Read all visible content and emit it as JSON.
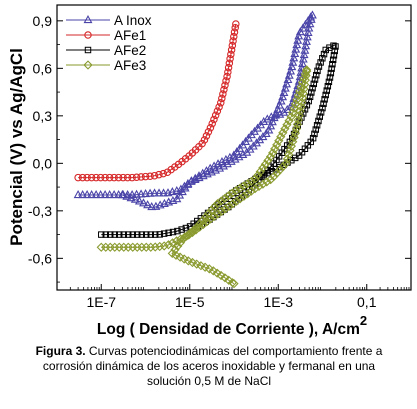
{
  "chart_data": {
    "type": "scatter",
    "title": "",
    "xlabel": "Log ( Densidad de Corriente ), A/cm",
    "xlabel_superscript": "2",
    "ylabel": "Potencial (V) vs Ag/AgCl",
    "x_scale": "log",
    "xlim": [
      1e-08,
      1
    ],
    "ylim": [
      -0.8,
      1.0
    ],
    "x_ticks": [
      1e-07,
      1e-05,
      0.001,
      0.1
    ],
    "x_tick_labels": [
      "1E-7",
      "1E-5",
      "1E-3",
      "0,1"
    ],
    "y_ticks": [
      -0.6,
      -0.3,
      0.0,
      0.3,
      0.6,
      0.9
    ],
    "y_tick_labels": [
      "-0,6",
      "-0,3",
      "0,0",
      "0,3",
      "0,6",
      "0,9"
    ],
    "grid": false,
    "legend_position": "top-left",
    "series": [
      {
        "name": "A Inox",
        "color": "#4a44a8",
        "marker": "triangle",
        "points": [
          [
            3e-08,
            -0.2
          ],
          [
            1e-07,
            -0.2
          ],
          [
            5e-07,
            -0.2
          ],
          [
            1.5e-06,
            -0.19
          ],
          [
            3e-06,
            -0.19
          ],
          [
            6e-06,
            -0.17
          ],
          [
            1e-05,
            -0.12
          ],
          [
            3e-05,
            -0.03
          ],
          [
            0.0001,
            0.05
          ],
          [
            0.00025,
            0.18
          ],
          [
            0.0005,
            0.27
          ],
          [
            0.0008,
            0.3
          ],
          [
            0.0012,
            0.31
          ],
          [
            0.002,
            0.36
          ],
          [
            0.003,
            0.52
          ],
          [
            0.005,
            0.86
          ],
          [
            0.006,
            0.94
          ],
          [
            0.003,
            0.82
          ],
          [
            0.002,
            0.6
          ],
          [
            0.0012,
            0.4
          ],
          [
            0.0006,
            0.2
          ],
          [
            0.0002,
            0.07
          ],
          [
            5e-05,
            -0.03
          ],
          [
            1e-05,
            -0.12
          ],
          [
            5e-06,
            -0.23
          ],
          [
            1.5e-06,
            -0.28
          ],
          [
            6e-07,
            -0.23
          ],
          [
            3e-07,
            -0.2
          ]
        ]
      },
      {
        "name": "AFe1",
        "color": "#d62728",
        "marker": "circle",
        "points": [
          [
            3e-08,
            -0.09
          ],
          [
            1e-07,
            -0.09
          ],
          [
            5e-07,
            -0.09
          ],
          [
            1.5e-06,
            -0.08
          ],
          [
            3e-06,
            -0.06
          ],
          [
            6e-06,
            0.0
          ],
          [
            1e-05,
            0.05
          ],
          [
            2e-05,
            0.13
          ],
          [
            3e-05,
            0.23
          ],
          [
            5e-05,
            0.38
          ],
          [
            7e-05,
            0.55
          ],
          [
            9e-05,
            0.73
          ],
          [
            0.00011,
            0.88
          ]
        ]
      },
      {
        "name": "AFe2",
        "color": "#000000",
        "marker": "square",
        "points": [
          [
            1e-07,
            -0.45
          ],
          [
            3e-07,
            -0.45
          ],
          [
            8e-07,
            -0.45
          ],
          [
            2e-06,
            -0.45
          ],
          [
            5e-06,
            -0.43
          ],
          [
            1e-05,
            -0.4
          ],
          [
            3e-05,
            -0.3
          ],
          [
            0.0001,
            -0.18
          ],
          [
            0.0003,
            -0.1
          ],
          [
            0.001,
            -0.03
          ],
          [
            0.003,
            0.05
          ],
          [
            0.006,
            0.15
          ],
          [
            0.01,
            0.35
          ],
          [
            0.015,
            0.55
          ],
          [
            0.02,
            0.75
          ],
          [
            0.012,
            0.72
          ],
          [
            0.008,
            0.6
          ],
          [
            0.005,
            0.4
          ],
          [
            0.002,
            0.15
          ],
          [
            0.0008,
            0.0
          ],
          [
            0.00025,
            -0.15
          ],
          [
            8e-05,
            -0.27
          ],
          [
            3e-05,
            -0.35
          ],
          [
            1.5e-05,
            -0.4
          ]
        ]
      },
      {
        "name": "AFe3",
        "color": "#8a9a2e",
        "marker": "diamond",
        "points": [
          [
            1e-07,
            -0.53
          ],
          [
            5e-07,
            -0.53
          ],
          [
            1.5e-06,
            -0.53
          ],
          [
            3e-06,
            -0.52
          ],
          [
            1e-05,
            -0.45
          ],
          [
            3e-05,
            -0.35
          ],
          [
            0.0001,
            -0.25
          ],
          [
            0.0003,
            -0.16
          ],
          [
            0.0007,
            -0.1
          ],
          [
            0.0015,
            0.0
          ],
          [
            0.0025,
            0.2
          ],
          [
            0.0035,
            0.4
          ],
          [
            0.0045,
            0.6
          ],
          [
            0.003,
            0.45
          ],
          [
            0.002,
            0.3
          ],
          [
            0.0012,
            0.18
          ],
          [
            0.0007,
            0.05
          ],
          [
            0.0003,
            -0.1
          ],
          [
            0.0001,
            -0.18
          ],
          [
            4e-05,
            -0.26
          ],
          [
            1.5e-05,
            -0.4
          ],
          [
            7e-06,
            -0.48
          ],
          [
            4e-06,
            -0.57
          ],
          [
            1e-05,
            -0.62
          ],
          [
            3e-05,
            -0.67
          ],
          [
            6e-05,
            -0.72
          ],
          [
            0.0001,
            -0.76
          ]
        ]
      }
    ]
  },
  "caption": {
    "label": "Figura 3.",
    "text": " Curvas potenciodinámicas del comportamiento frente a corrosión dinámica de los aceros inoxidable y fermanal en una solución 0,5 M de NaCl"
  }
}
